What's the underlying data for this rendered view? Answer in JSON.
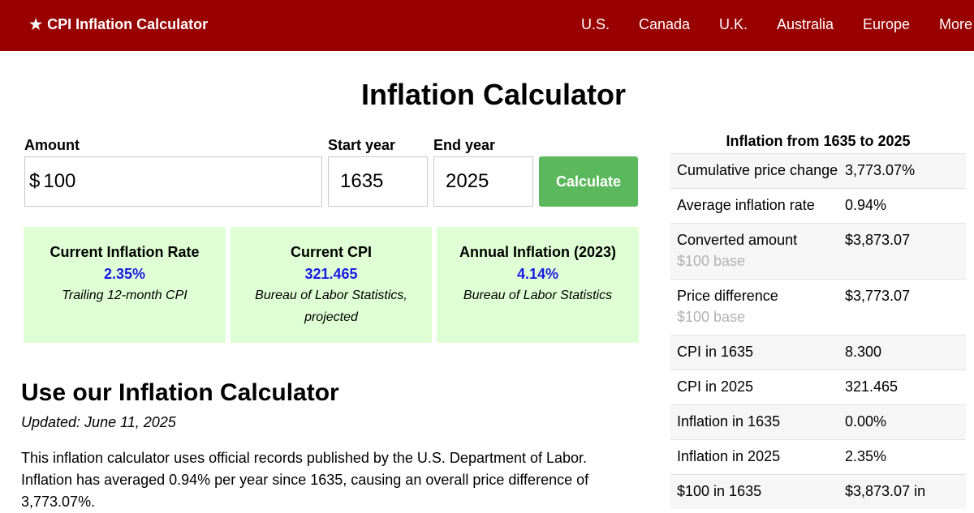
{
  "header": {
    "brand": "CPI Inflation Calculator",
    "nav": [
      "U.S.",
      "Canada",
      "U.K.",
      "Australia",
      "Europe",
      "More"
    ]
  },
  "page_title": "Inflation Calculator",
  "form": {
    "amount_label": "Amount",
    "currency_symbol": "$",
    "amount_value": "100",
    "start_label": "Start year",
    "start_value": "1635",
    "end_label": "End year",
    "end_value": "2025",
    "calculate_label": "Calculate"
  },
  "stats": [
    {
      "title": "Current Inflation Rate",
      "value": "2.35%",
      "note": "Trailing 12-month CPI"
    },
    {
      "title": "Current CPI",
      "value": "321.465",
      "note": "Bureau of Labor Statistics, projected"
    },
    {
      "title": "Annual Inflation (2023)",
      "value": "4.14%",
      "note": "Bureau of Labor Statistics"
    }
  ],
  "article": {
    "title": "Use our Inflation Calculator",
    "updated": "Updated: June 11, 2025",
    "intro": "This inflation calculator uses official records published by the U.S. Department of Labor. Inflation has averaged 0.94% per year since 1635, causing an overall price difference of 3,773.07%."
  },
  "summary": {
    "title": "Inflation from 1635 to 2025",
    "rows": [
      {
        "label": "Cumulative price change",
        "value": "3,773.07%",
        "sub": ""
      },
      {
        "label": "Average inflation rate",
        "value": "0.94%",
        "sub": ""
      },
      {
        "label": "Converted amount",
        "value": "$3,873.07",
        "sub": "$100 base"
      },
      {
        "label": "Price difference",
        "value": "$3,773.07",
        "sub": "$100 base"
      },
      {
        "label": "CPI in 1635",
        "value": "8.300",
        "sub": ""
      },
      {
        "label": "CPI in 2025",
        "value": "321.465",
        "sub": ""
      },
      {
        "label": "Inflation in 1635",
        "value": "0.00%",
        "sub": ""
      },
      {
        "label": "Inflation in 2025",
        "value": "2.35%",
        "sub": ""
      },
      {
        "label": "$100 in 1635",
        "value": "$3,873.07 in",
        "sub": ""
      }
    ]
  }
}
